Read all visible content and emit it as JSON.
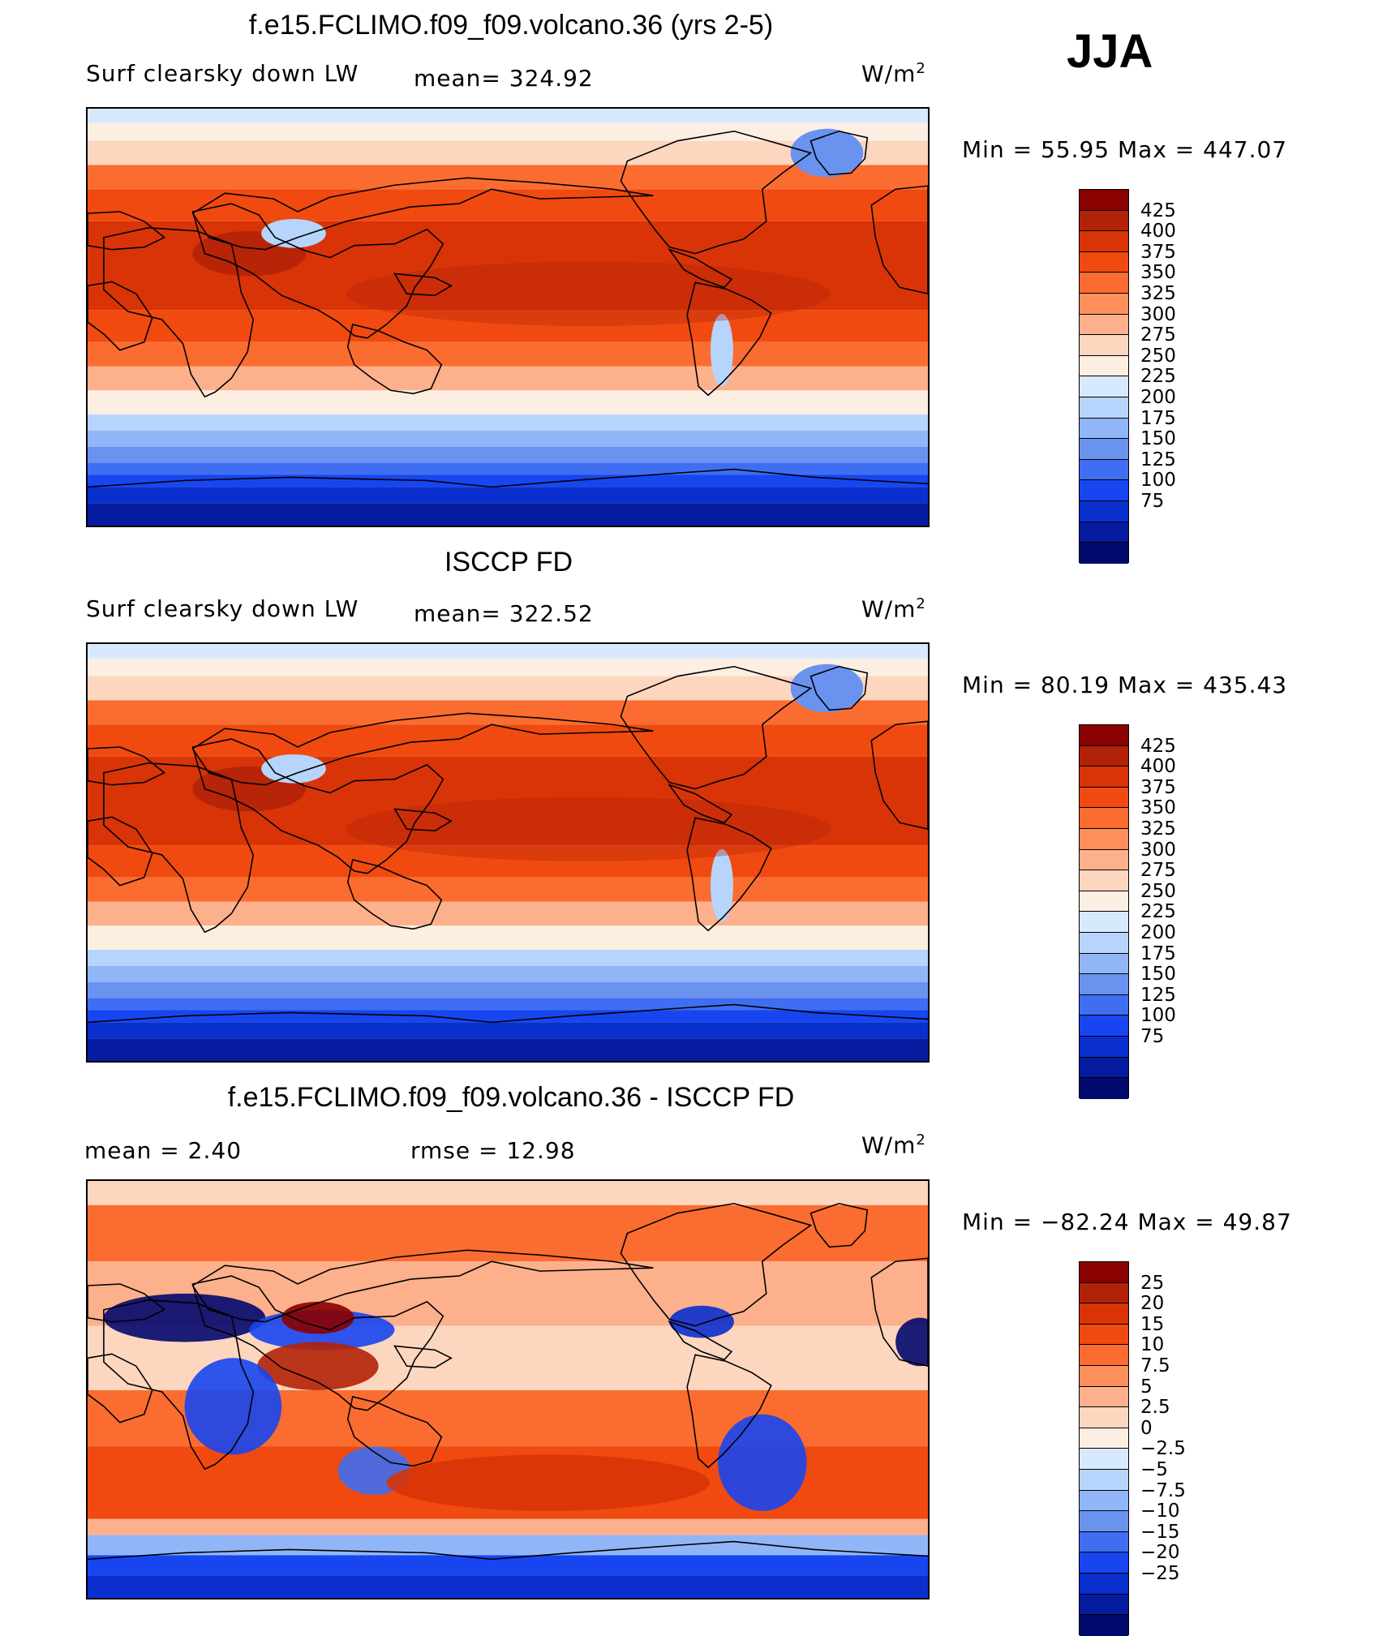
{
  "season": "JJA",
  "panels": [
    {
      "title": "f.e15.FCLIMO.f09_f09.volcano.36 (yrs 2-5)",
      "left_label": "Surf clearsky down LW",
      "stat_label": "mean= 324.92",
      "units": "W/m",
      "units_sup": "2",
      "minmax": "Min =   55.95 Max = 447.07",
      "colorbar": {
        "labels": [
          "425",
          "400",
          "375",
          "350",
          "325",
          "300",
          "275",
          "250",
          "225",
          "200",
          "175",
          "150",
          "125",
          "100",
          "75"
        ],
        "colors": [
          "#8b0000",
          "#b22208",
          "#d83408",
          "#f04a10",
          "#fb6c30",
          "#fc8f5c",
          "#fdb08c",
          "#fdd6bf",
          "#fdeee2",
          "#d7eafd",
          "#b6d4fc",
          "#91b6f8",
          "#6a93f0",
          "#3f6ef2",
          "#1746f0",
          "#0a2fce",
          "#061ca0",
          "#02096e"
        ]
      },
      "map_kind": "abs"
    },
    {
      "title": "ISCCP FD",
      "left_label": "Surf clearsky down LW",
      "stat_label": "mean= 322.52",
      "units": "W/m",
      "units_sup": "2",
      "minmax": "Min =   80.19 Max = 435.43",
      "colorbar": {
        "labels": [
          "425",
          "400",
          "375",
          "350",
          "325",
          "300",
          "275",
          "250",
          "225",
          "200",
          "175",
          "150",
          "125",
          "100",
          "75"
        ],
        "colors": [
          "#8b0000",
          "#b22208",
          "#d83408",
          "#f04a10",
          "#fb6c30",
          "#fc8f5c",
          "#fdb08c",
          "#fdd6bf",
          "#fdeee2",
          "#d7eafd",
          "#b6d4fc",
          "#91b6f8",
          "#6a93f0",
          "#3f6ef2",
          "#1746f0",
          "#0a2fce",
          "#061ca0",
          "#02096e"
        ]
      },
      "map_kind": "abs"
    },
    {
      "title": "f.e15.FCLIMO.f09_f09.volcano.36 - ISCCP FD",
      "left_label": "mean =    2.40",
      "stat_label": "rmse =    12.98",
      "units": "W/m",
      "units_sup": "2",
      "minmax": "Min = −82.24 Max =   49.87",
      "colorbar": {
        "labels": [
          "25",
          "20",
          "15",
          "10",
          "7.5",
          "5",
          "2.5",
          "0",
          "−2.5",
          "−5",
          "−7.5",
          "−10",
          "−15",
          "−20",
          "−25"
        ],
        "colors": [
          "#8b0000",
          "#b22208",
          "#d83408",
          "#f04a10",
          "#fb6c30",
          "#fc8f5c",
          "#fdb08c",
          "#fdd6bf",
          "#fdeee2",
          "#d7eafd",
          "#b6d4fc",
          "#91b6f8",
          "#6a93f0",
          "#3f6ef2",
          "#1746f0",
          "#0a2fce",
          "#061ca0",
          "#02096e"
        ]
      },
      "map_kind": "diff"
    }
  ]
}
